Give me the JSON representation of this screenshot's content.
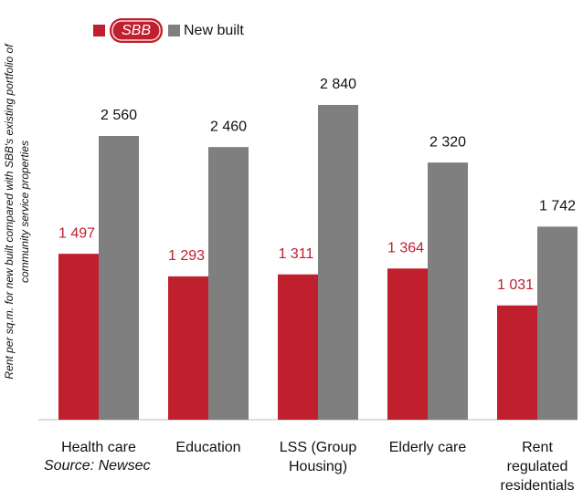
{
  "chart_data": {
    "type": "bar",
    "ylabel": [
      "Rent per sq.m. for new built compared with SBB's existing portfolio of",
      "community service properties"
    ],
    "categories": [
      "Health care",
      "Education",
      "LSS (Group Housing)",
      "Elderly care",
      "Rent regulated residentials"
    ],
    "series": [
      {
        "name": "SBB",
        "color": "#c0202e",
        "values": [
          1497,
          1293,
          1311,
          1364,
          1031
        ],
        "value_labels": [
          "1 497",
          "1 293",
          "1 311",
          "1 364",
          "1 031"
        ]
      },
      {
        "name": "New built",
        "color": "#7f7f7f",
        "values": [
          2560,
          2460,
          2840,
          2320,
          1742
        ],
        "value_labels": [
          "2 560",
          "2 460",
          "2 840",
          "2 320",
          "1 742"
        ]
      }
    ],
    "source": "Source: Newsec"
  }
}
